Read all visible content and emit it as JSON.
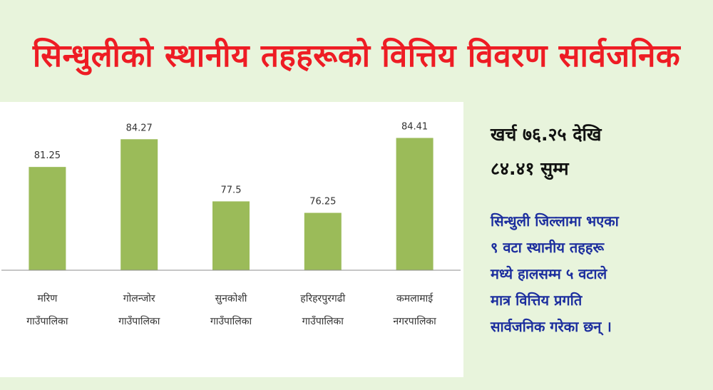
{
  "headline": "सिन्धुलीको स्थानीय तहहरूको वित्तिय विवरण सार्वजनिक",
  "highlight": {
    "line1": "खर्च ७६.२५ देखि",
    "line2": "८४.४१ सुम्म"
  },
  "summary": {
    "lines": [
      "सिन्धुली जिल्लामा भएका",
      "९ वटा स्थानीय तहहरू",
      "मध्ये हालसम्म ५ वटाले",
      "मात्र वित्तिय प्रगति",
      "सार्वजनिक गरेका छन् ।"
    ]
  },
  "colors": {
    "bar": "#9bbb59",
    "axis": "#8c8c8c",
    "headline": "#ee1c24",
    "summary": "#1c2e9e",
    "background": "#e8f4dc"
  },
  "chart_data": {
    "type": "bar",
    "title": "",
    "xlabel": "",
    "ylabel": "",
    "ylim": [
      70,
      86
    ],
    "grid": false,
    "categories": [
      [
        "मरिण",
        "गाउँपालिका"
      ],
      [
        "गोलन्जोर",
        "गाउँपालिका"
      ],
      [
        "सुनकोशी",
        "गाउँपालिका"
      ],
      [
        "हरिहरपुरगढी",
        "गाउँपालिका"
      ],
      [
        "कमलामाई",
        "नगरपालिका"
      ]
    ],
    "values": [
      81.25,
      84.27,
      77.5,
      76.25,
      84.41
    ],
    "data_labels": [
      "81.25",
      "84.27",
      "77.5",
      "76.25",
      "84.41"
    ]
  }
}
